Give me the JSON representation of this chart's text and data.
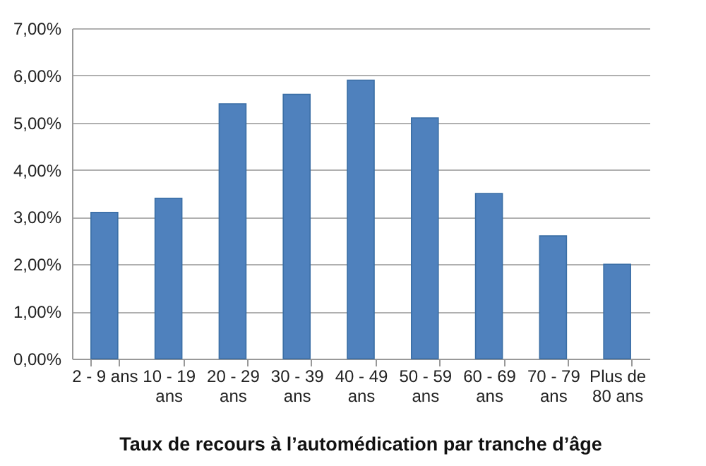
{
  "chart_data": {
    "type": "bar",
    "title": "Taux de recours à l’automédication par tranche d’âge",
    "categories": [
      "2 - 9 ans",
      "10 - 19 ans",
      "20 - 29 ans",
      "30 - 39 ans",
      "40 - 49 ans",
      "50 - 59 ans",
      "60 - 69 ans",
      "70 - 79 ans",
      "Plus de 80 ans"
    ],
    "values": [
      3.1,
      3.4,
      5.4,
      5.6,
      5.9,
      5.1,
      3.5,
      2.6,
      2.0
    ],
    "color": "#4f81bd",
    "ylim": [
      0,
      7
    ],
    "yticks": [
      {
        "value": 0,
        "label": "0,00%"
      },
      {
        "value": 1,
        "label": "1,00%"
      },
      {
        "value": 2,
        "label": "2,00%"
      },
      {
        "value": 3,
        "label": "3,00%"
      },
      {
        "value": 4,
        "label": "4,00%"
      },
      {
        "value": 5,
        "label": "5,00%"
      },
      {
        "value": 6,
        "label": "6,00%"
      },
      {
        "value": 7,
        "label": "7,00%"
      }
    ],
    "grid": "y"
  }
}
